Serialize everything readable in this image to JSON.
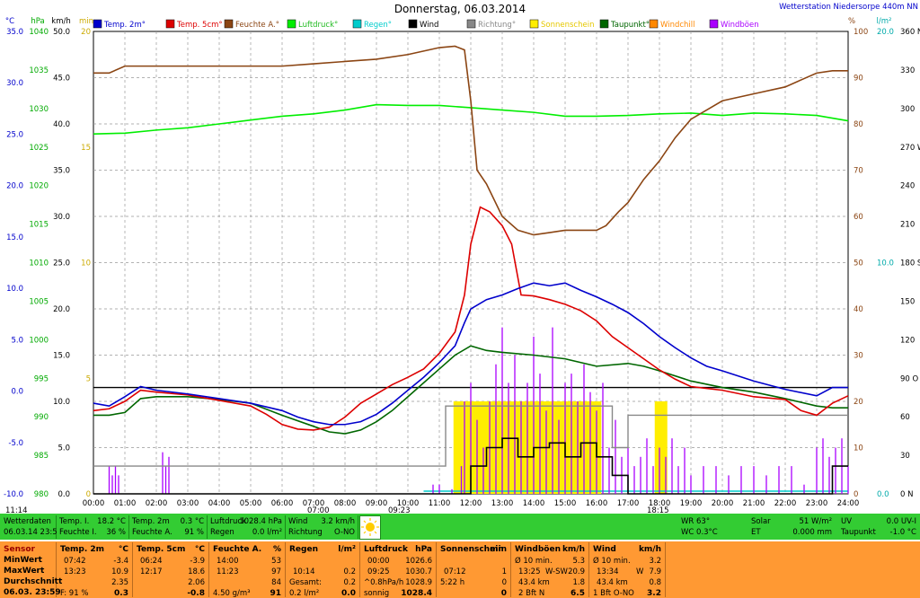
{
  "chart_data": {
    "type": "line",
    "title": "Donnerstag, 06.03.2014",
    "station": "Wetterstation Niedersorpe 440m NN",
    "legend": [
      {
        "label": "Temp. 2m°",
        "color": "#0000cc"
      },
      {
        "label": "Temp. 5cm°",
        "color": "#dd0000"
      },
      {
        "label": "Feuchte A.°",
        "color": "#8b4513"
      },
      {
        "label": "Luftdruck°",
        "color": "#00ee00"
      },
      {
        "label": "Regen°",
        "color": "#00cccc"
      },
      {
        "label": "Wind",
        "color": "#000000"
      },
      {
        "label": "Richtung°",
        "color": "#888888"
      },
      {
        "label": "Sonnenschein",
        "color": "#ffee00"
      },
      {
        "label": "Taupunkt°",
        "color": "#006600"
      },
      {
        "label": "Windchill",
        "color": "#ff8800"
      },
      {
        "label": "Windböen",
        "color": "#aa00ff"
      }
    ],
    "axes": {
      "temp_unit": "°C",
      "temp_ticks": [
        "35.0",
        "30.0",
        "25.0",
        "20.0",
        "15.0",
        "10.0",
        "5.0",
        "0.0",
        "-5.0",
        "-10.0"
      ],
      "hpa_unit": "hPa",
      "hpa_ticks": [
        "1040",
        "1035",
        "1030",
        "1025",
        "1020",
        "1015",
        "1010",
        "1005",
        "1000",
        "995",
        "990",
        "985",
        "980"
      ],
      "wind_unit": "km/h",
      "wind_ticks": [
        "50.0",
        "45.0",
        "40.0",
        "35.0",
        "30.0",
        "25.0",
        "20.0",
        "15.0",
        "10.0",
        "5.0",
        "0.0"
      ],
      "min_unit": "min",
      "min_ticks": [
        "20",
        "15",
        "10",
        "5",
        "0"
      ],
      "pct_unit": "%",
      "pct_ticks": [
        "100",
        "90",
        "80",
        "70",
        "60",
        "50",
        "40",
        "30",
        "20",
        "10",
        "0"
      ],
      "rain_unit": "l/m²",
      "rain_ticks": [
        "20.0",
        "10.0",
        "0.0"
      ],
      "dir_ticks": [
        "360 N",
        "330",
        "300",
        "270 W",
        "240",
        "210",
        "180 S",
        "150",
        "120",
        "90 O",
        "60",
        "30",
        "0 N"
      ],
      "x_ticks": [
        "00:00",
        "01:00",
        "02:00",
        "03:00",
        "04:00",
        "05:00",
        "06:00",
        "07:00",
        "08:00",
        "09:00",
        "10:00",
        "11:00",
        "12:00",
        "13:00",
        "14:00",
        "15:00",
        "16:00",
        "17:00",
        "18:00",
        "19:00",
        "20:00",
        "21:00",
        "22:00",
        "23:00",
        "24:00"
      ],
      "x_range": [
        0,
        24
      ],
      "wind_range": [
        0,
        50
      ],
      "temp_range": [
        -10,
        35
      ],
      "hpa_range": [
        980,
        1040
      ],
      "pct_range": [
        0,
        100
      ],
      "sun_range": [
        0,
        20
      ]
    },
    "markers": {
      "sunrise": "07:00",
      "noon": "09:23",
      "sunset": "18:15",
      "daylength": "11:14"
    },
    "series": [
      {
        "name": "Temp. 2m°",
        "axis": "wind",
        "x": [
          0,
          0.5,
          1,
          1.5,
          2,
          3,
          4,
          5,
          6,
          6.5,
          7,
          7.5,
          8,
          8.5,
          9,
          9.5,
          10,
          10.5,
          11,
          11.5,
          11.8,
          12,
          12.5,
          13,
          13.5,
          14,
          14.5,
          15,
          15.5,
          16,
          16.5,
          17,
          17.5,
          18,
          18.5,
          19,
          19.5,
          20,
          21,
          22,
          23,
          23.5,
          24
        ],
        "values": [
          9.8,
          9.5,
          10.5,
          11.6,
          11.2,
          10.8,
          10.3,
          9.8,
          9,
          8.3,
          7.8,
          7.5,
          7.5,
          7.8,
          8.6,
          9.8,
          11.2,
          12.6,
          14.2,
          16,
          18.5,
          20,
          21,
          21.5,
          22.2,
          22.8,
          22.5,
          22.8,
          22,
          21.3,
          20.5,
          19.6,
          18.4,
          17,
          15.8,
          14.7,
          13.8,
          13.3,
          12.2,
          11.3,
          10.6,
          11.5,
          11.5
        ]
      },
      {
        "name": "Temp. 5cm°",
        "axis": "wind",
        "x": [
          0,
          0.5,
          1,
          1.5,
          2,
          3,
          4,
          5,
          5.5,
          6,
          6.5,
          7,
          7.5,
          8,
          8.5,
          9,
          9.5,
          10,
          10.5,
          11,
          11.5,
          11.8,
          12,
          12.3,
          12.6,
          13,
          13.3,
          13.6,
          14,
          14.5,
          15,
          15.5,
          16,
          16.5,
          17,
          17.5,
          18,
          18.5,
          19,
          19.5,
          20,
          21,
          22,
          22.5,
          23,
          23.5,
          24
        ],
        "values": [
          9,
          9.2,
          10,
          11.2,
          11,
          10.7,
          10.1,
          9.5,
          8.6,
          7.5,
          7,
          6.9,
          7.2,
          8.3,
          9.8,
          10.8,
          11.8,
          12.6,
          13.5,
          15.2,
          17.5,
          21.5,
          27,
          31,
          30.5,
          29,
          27,
          21.5,
          21.4,
          21,
          20.5,
          19.8,
          18.7,
          17,
          15.8,
          14.6,
          13.4,
          12.4,
          11.6,
          11.4,
          11.2,
          10.5,
          10.2,
          9,
          8.5,
          9.8,
          10.6
        ]
      },
      {
        "name": "Feuchte A.°",
        "axis": "pct",
        "x": [
          0,
          0.5,
          1,
          1.5,
          2,
          3,
          4,
          5,
          6,
          7,
          8,
          9,
          10,
          11,
          11.5,
          11.8,
          12,
          12.2,
          12.5,
          13,
          13.5,
          14,
          14.5,
          15,
          15.5,
          16,
          16.3,
          16.7,
          17,
          17.5,
          18,
          18.5,
          19,
          19.5,
          20,
          21,
          22,
          22.5,
          23,
          23.5,
          24
        ],
        "values": [
          91,
          91,
          92.5,
          92.5,
          92.5,
          92.5,
          92.5,
          92.5,
          92.5,
          93,
          93.5,
          94,
          95,
          96.5,
          96.8,
          96,
          85,
          70,
          67,
          60,
          57,
          56,
          56.5,
          57,
          57,
          57,
          58,
          61,
          63,
          68,
          72,
          77,
          81,
          83,
          85,
          86.5,
          88,
          89.5,
          91,
          91.5,
          91.5
        ]
      },
      {
        "name": "Luftdruck°",
        "axis": "hpa",
        "x": [
          0,
          1,
          2,
          3,
          4,
          5,
          6,
          7,
          8,
          9,
          10,
          11,
          12,
          13,
          14,
          15,
          16,
          17,
          18,
          19,
          20,
          21,
          22,
          23,
          24
        ],
        "values": [
          1026.7,
          1026.8,
          1027.2,
          1027.5,
          1028,
          1028.5,
          1029,
          1029.3,
          1029.8,
          1030.5,
          1030.4,
          1030.4,
          1030.1,
          1029.8,
          1029.5,
          1029,
          1029,
          1029.1,
          1029.3,
          1029.4,
          1029.1,
          1029.4,
          1029.3,
          1029.1,
          1028.4
        ]
      },
      {
        "name": "Taupunkt°",
        "axis": "wind",
        "x": [
          0,
          0.5,
          1,
          1.5,
          2,
          3,
          4,
          5,
          6,
          7,
          7.5,
          8,
          8.5,
          9,
          9.5,
          10,
          10.5,
          11,
          11.5,
          12,
          12.5,
          13,
          14,
          15,
          16,
          17,
          17.5,
          18,
          19,
          20,
          21,
          22,
          23,
          23.5,
          24
        ],
        "values": [
          8.5,
          8.5,
          8.8,
          10.3,
          10.5,
          10.5,
          10.2,
          9.8,
          8.5,
          7.3,
          6.7,
          6.5,
          6.9,
          7.8,
          9,
          10.5,
          12,
          13.5,
          15,
          16,
          15.5,
          15.3,
          15,
          14.6,
          13.8,
          14.1,
          13.8,
          13.3,
          12.2,
          11.5,
          11,
          10.3,
          9.5,
          9.3,
          9.3
        ]
      },
      {
        "name": "Wind",
        "axis": "wind",
        "x": [
          0,
          11.9,
          12,
          12.5,
          13,
          13.5,
          14,
          14.5,
          15,
          15.5,
          16,
          16.5,
          17,
          18,
          19,
          20,
          21,
          22,
          23,
          23.5,
          24
        ],
        "values": [
          0,
          0,
          3,
          5,
          6,
          4,
          5,
          5.5,
          4,
          5.5,
          4,
          2,
          0,
          0,
          0,
          0,
          0,
          0,
          0,
          3,
          3
        ]
      },
      {
        "name": "Richtung°",
        "axis": "wind",
        "x": [
          0,
          0.5,
          1,
          10.5,
          11.2,
          11.5,
          12,
          12.5,
          13,
          14,
          15,
          16,
          16.5,
          17,
          18,
          19,
          20,
          21,
          22,
          23,
          24
        ],
        "values": [
          3,
          3,
          3,
          3,
          9.5,
          9.5,
          9.5,
          9.5,
          9.5,
          9.5,
          9.5,
          9.5,
          5,
          8.5,
          8.5,
          8.5,
          8.5,
          8.5,
          8.5,
          8.5,
          8.5
        ]
      }
    ],
    "windgusts": {
      "x": [
        0.5,
        0.6,
        0.7,
        0.8,
        2.2,
        2.3,
        2.4,
        10.8,
        11,
        11.4,
        11.7,
        11.8,
        12,
        12.2,
        12.4,
        12.6,
        12.8,
        13,
        13.2,
        13.4,
        13.6,
        13.8,
        14,
        14.2,
        14.4,
        14.6,
        14.8,
        15,
        15.2,
        15.4,
        15.6,
        15.8,
        16,
        16.2,
        16.4,
        16.6,
        16.8,
        17,
        17.2,
        17.4,
        17.6,
        17.8,
        18,
        18.2,
        18.4,
        18.6,
        18.8,
        19,
        19.4,
        19.8,
        20.2,
        20.6,
        21,
        21.4,
        21.8,
        22.2,
        22.6,
        23,
        23.2,
        23.4,
        23.6,
        23.8,
        24
      ],
      "values": [
        3,
        2,
        3,
        2,
        4.5,
        3,
        4,
        1,
        1,
        0.5,
        3,
        10,
        12,
        8,
        5,
        10,
        14,
        18,
        12,
        15,
        10,
        12,
        17,
        13,
        9,
        18,
        8,
        12,
        13,
        10,
        14,
        11,
        9,
        12,
        5,
        8,
        4,
        5,
        3,
        4,
        6,
        3,
        5,
        4,
        6,
        3,
        5,
        2,
        3,
        3,
        2,
        3,
        3,
        2,
        3,
        3,
        1,
        5,
        6,
        4,
        5,
        6,
        3
      ]
    },
    "sunshine": {
      "segments": [
        [
          11.45,
          16.15
        ],
        [
          17.85,
          18.25
        ]
      ],
      "height_min": 4
    },
    "rain_base": 0.0
  },
  "ui": {
    "bar1": {
      "wetter_label": "Wetterdaten",
      "wetter_date": "06.03.14 23:59",
      "temp_i_label": "Temp. I.",
      "temp_i_value": "18.2 °C",
      "feuchte_i_label": "Feuchte I.",
      "feuchte_i_value": "36 %",
      "temp2m_label": "Temp. 2m",
      "temp2m_value": "0.3 °C",
      "feuchtea_label": "Feuchte A.",
      "feuchtea_value": "91 %",
      "luftdruck_label": "Luftdruck",
      "luftdruck_value": "1028.4 hPa",
      "regen_label": "Regen",
      "regen_value": "0.0 l/m²",
      "wind_label": "Wind",
      "wind_value": "3.2 km/h",
      "richtung_label": "Richtung",
      "richtung_value": "O-NO",
      "wr_label": "WR 63°",
      "wc_label": "WC 0.3°C",
      "solar_label": "Solar",
      "solar_value": "51 W/m²",
      "et_label": "ET",
      "et_value": "0.000 mm",
      "uv_label": "UV",
      "uv_value": "0.0 UV-I",
      "taupunkt_label": "Taupunkt",
      "taupunkt_value": "-1.0 °C"
    },
    "bar2": {
      "sensor": "Sensor",
      "minwert": "MinWert",
      "maxwert": "MaxWert",
      "durchschnitt": "Durchschnitt",
      "date": "06.03. 23:59",
      "t2_head": "Temp. 2m",
      "t2_unit": "°C",
      "t2_min_t": "07:42",
      "t2_min": "-3.4",
      "t2_max_t": "13:23",
      "t2_max": "10.9",
      "t2_avg": "2.35",
      "t2_f": "F: 91 %",
      "t2_now": "0.3",
      "t5_head": "Temp. 5cm",
      "t5_unit": "°C",
      "t5_min_t": "06:24",
      "t5_min": "-3.9",
      "t5_max_t": "12:17",
      "t5_max": "18.6",
      "t5_avg": "2.06",
      "t5_now": "-0.8",
      "fa_head": "Feuchte A.",
      "fa_unit": "%",
      "fa_min_t": "14:00",
      "fa_min": "53",
      "fa_max_t": "11:23",
      "fa_max": "97",
      "fa_avg": "84",
      "fa_abs": "4.50 g/m³",
      "fa_now": "91",
      "rg_head": "Regen",
      "rg_unit": "l/m²",
      "rg_1": "10:14",
      "rg_1v": "0.2",
      "rg_2": "Gesamt:",
      "rg_2v": "0.2",
      "rg_3": "0.2 l/m²",
      "rg_now": "0.0",
      "ld_head": "Luftdruck",
      "ld_unit": "hPa",
      "ld_1": "00:00",
      "ld_1v": "1026.6",
      "ld_2": "09:25",
      "ld_2v": "1030.7",
      "ld_3": "^0.8hPa/h",
      "ld_3v": "1028.9",
      "ld_4": "sonnig",
      "ld_now": "1028.4",
      "ss_head": "Sonnenschein",
      "ss_unit": "min",
      "ss_1": "07:12",
      "ss_1v": "1",
      "ss_2": "5:22 h",
      "ss_2v": "0",
      "ss_now": "0",
      "wb_head": "Windböen",
      "wb_unit": "km/h",
      "wb_1": "Ø 10 min.",
      "wb_1v": "5.3",
      "wb_2": "13:25",
      "wb_2m": "W-SW",
      "wb_2v": "20.9",
      "wb_3": "43.4 km",
      "wb_3v": "1.8",
      "wb_4": "2 Bft N",
      "wb_now": "6.5",
      "wi_head": "Wind",
      "wi_unit": "km/h",
      "wi_1": "Ø 10 min.",
      "wi_1v": "3.2",
      "wi_2": "13:34",
      "wi_2m": "W",
      "wi_2v": "7.9",
      "wi_3": "43.4 km",
      "wi_3v": "0.8",
      "wi_4": "1 Bft O-NO",
      "wi_now": "3.2"
    }
  }
}
